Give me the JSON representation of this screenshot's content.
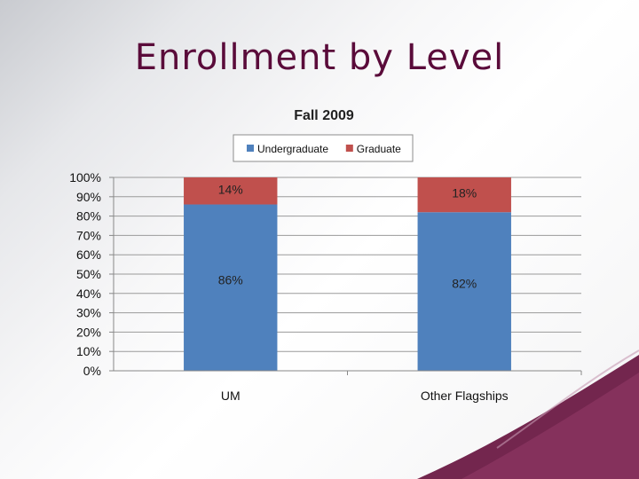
{
  "slide": {
    "title": "Enrollment by Level"
  },
  "theme": {
    "title_color": "#5a0b3a",
    "accent": "#6b1a45"
  },
  "chart_data": {
    "type": "bar",
    "stacked": true,
    "normalized_percent": true,
    "title": "Fall 2009",
    "categories": [
      "UM",
      "Other Flagships"
    ],
    "series": [
      {
        "name": "Undergraduate",
        "values": [
          86,
          82
        ],
        "labels": [
          "86%",
          "82%"
        ],
        "color": "#4f81bd"
      },
      {
        "name": "Graduate",
        "values": [
          14,
          18
        ],
        "labels": [
          "14%",
          "18%"
        ],
        "color": "#c0504d"
      }
    ],
    "ylim": [
      0,
      100
    ],
    "yticks": [
      "0%",
      "10%",
      "20%",
      "30%",
      "40%",
      "50%",
      "60%",
      "70%",
      "80%",
      "90%",
      "100%"
    ],
    "grid": true,
    "legend_position": "top"
  }
}
